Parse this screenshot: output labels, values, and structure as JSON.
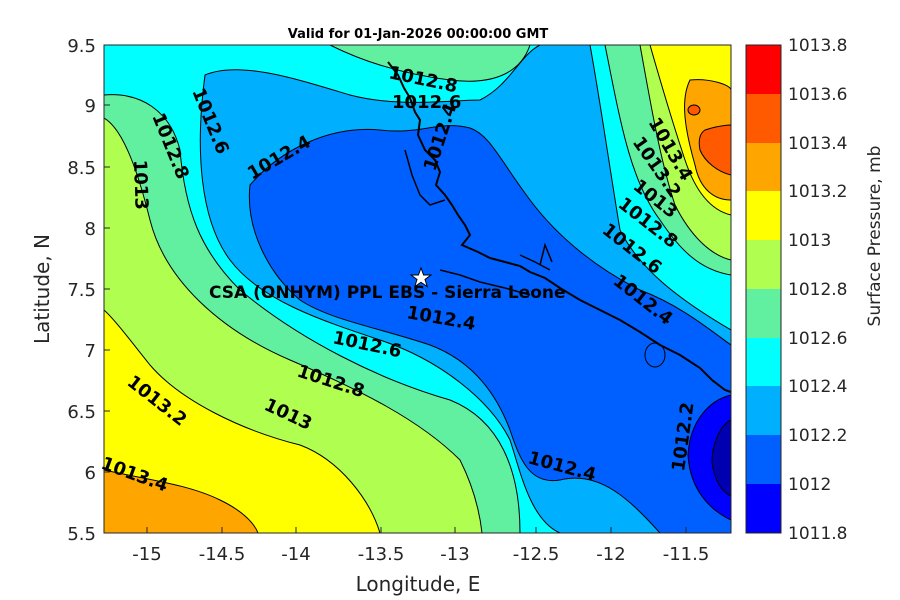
{
  "title": "Valid for 01-Jan-2026 00:00:00 GMT",
  "x_axis": {
    "label": "Longitude, E",
    "ticks": [
      "-15",
      "-14.5",
      "-14",
      "-13.5",
      "-13",
      "-12.5",
      "-12",
      "-11.5"
    ]
  },
  "y_axis": {
    "label": "Latitude, N",
    "ticks": [
      "9.5",
      "9",
      "8.5",
      "8",
      "7.5",
      "7",
      "6.5",
      "6",
      "5.5"
    ]
  },
  "colorbar": {
    "title": "Surface Pressure, mb",
    "levels": [
      "1013.8",
      "1013.6",
      "1013.4",
      "1013.2",
      "1013",
      "1012.8",
      "1012.6",
      "1012.4",
      "1012.2",
      "1012",
      "1011.8"
    ],
    "colors": [
      "#ff0000",
      "#ff5a00",
      "#ffa500",
      "#ffff00",
      "#b0ff50",
      "#60f0a0",
      "#00ffff",
      "#00b0ff",
      "#0060ff",
      "#0000ff",
      "#0000b0"
    ]
  },
  "contour_labels": {
    "c1": "1012.8",
    "c2": "1012.6",
    "c3": "1012.6",
    "c4": "1012.8",
    "c5": "1013",
    "c6": "1012.4",
    "c7": "1012.4",
    "c8": "1013.4",
    "c9": "1013.2",
    "c10": "1013",
    "c11": "1012.8",
    "c12": "1012.6",
    "c13": "1012.4",
    "c14": "1012.4",
    "c15": "1012.6",
    "c16": "1012.8",
    "c17": "1013",
    "c18": "1013.2",
    "c19": "1013.4",
    "c20": "1012.4",
    "c21": "1012.2"
  },
  "station": {
    "label": "CSA (ONHYM) PPL EBS  - Sierra Leone",
    "marker_icon": "star-icon"
  }
}
